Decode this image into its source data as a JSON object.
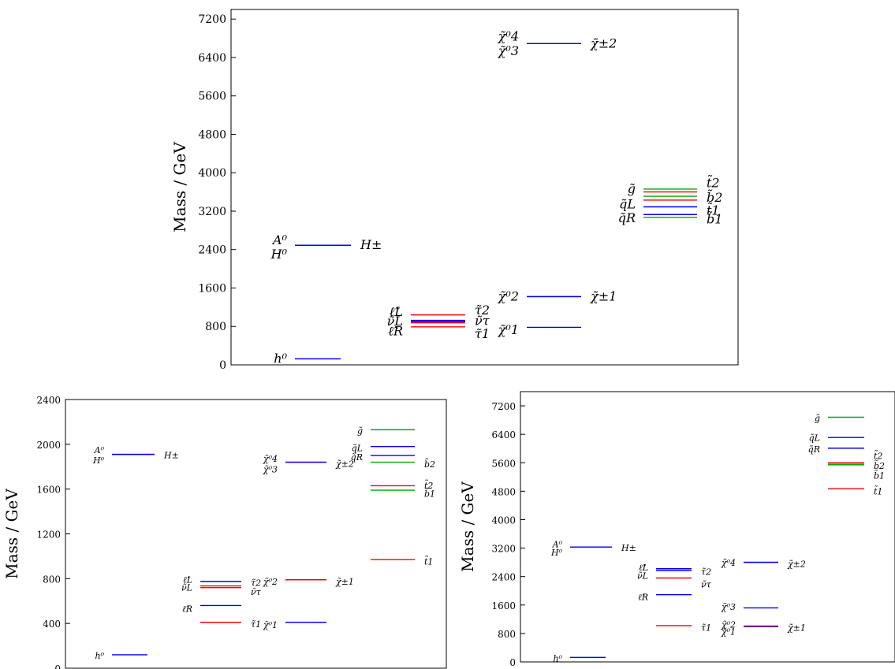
{
  "chart_data": [
    {
      "type": "level-diagram",
      "ylabel": "Mass / GeV",
      "ylim": [
        0,
        7400
      ],
      "yticks": [
        0,
        800,
        1600,
        2400,
        3200,
        4000,
        4800,
        5600,
        6400,
        7200
      ],
      "grid": false,
      "columns": [
        {
          "lines": [
            {
              "value": 125,
              "color": "#0000ff"
            }
          ],
          "left_labels": [
            {
              "text": "h⁰",
              "value": 125
            }
          ],
          "right_labels": []
        },
        {
          "lines": [
            {
              "value": 2490,
              "color": "#ff0000"
            },
            {
              "value": 2490,
              "color": "#0000ff"
            }
          ],
          "left_labels": [
            {
              "text": "A⁰",
              "value": 2590
            },
            {
              "text": "H⁰",
              "value": 2300
            }
          ],
          "right_labels": [
            {
              "text": "H±",
              "value": 2490
            }
          ]
        },
        {
          "lines": [
            {
              "value": 1040,
              "color": "#ff0000"
            },
            {
              "value": 925,
              "color": "#0000ff"
            },
            {
              "value": 900,
              "color": "#0000ff"
            },
            {
              "value": 875,
              "color": "#ff0000"
            },
            {
              "value": 790,
              "color": "#ff0000"
            }
          ],
          "left_labels": [
            {
              "text": "ℓ̃L",
              "value": 1100
            },
            {
              "text": "ν̃L",
              "value": 900
            },
            {
              "text": "ℓ̃R",
              "value": 700
            }
          ],
          "right_labels": [
            {
              "text": "τ̃2",
              "value": 1130
            },
            {
              "text": "ν̃τ",
              "value": 910
            },
            {
              "text": "τ̃1",
              "value": 640
            }
          ]
        },
        {
          "lines": [
            {
              "value": 780,
              "color": "#0000ff"
            },
            {
              "value": 1420,
              "color": "#ff0000"
            },
            {
              "value": 1420,
              "color": "#0000ff"
            },
            {
              "value": 6690,
              "color": "#ff0000"
            },
            {
              "value": 6690,
              "color": "#0000ff"
            }
          ],
          "left_labels": [
            {
              "text": "χ̃⁰1",
              "value": 720
            },
            {
              "text": "χ̃⁰2",
              "value": 1420
            },
            {
              "text": "χ̃⁰4",
              "value": 6830
            },
            {
              "text": "χ̃⁰3",
              "value": 6530
            }
          ],
          "right_labels": [
            {
              "text": "χ̃±1",
              "value": 1420
            },
            {
              "text": "χ̃±2",
              "value": 6690
            }
          ]
        },
        {
          "lines": [
            {
              "value": 3660,
              "color": "#00aa00"
            },
            {
              "value": 3600,
              "color": "#ff0000"
            },
            {
              "value": 3510,
              "color": "#00aa00"
            },
            {
              "value": 3430,
              "color": "#ff0000"
            },
            {
              "value": 3290,
              "color": "#0000ff"
            },
            {
              "value": 3130,
              "color": "#0000ff"
            },
            {
              "value": 3070,
              "color": "#00aa00"
            }
          ],
          "left_labels": [
            {
              "text": "g̃",
              "value": 3660
            },
            {
              "text": "q̃L",
              "value": 3340
            },
            {
              "text": "q̃R",
              "value": 3050
            }
          ],
          "right_labels": [
            {
              "text": "t̃2",
              "value": 3780
            },
            {
              "text": "b̃2",
              "value": 3480
            },
            {
              "text": "t̃1",
              "value": 3210
            },
            {
              "text": "b̃1",
              "value": 3030
            }
          ]
        }
      ]
    },
    {
      "type": "level-diagram",
      "ylabel": "Mass / GeV",
      "ylim": [
        0,
        2400
      ],
      "yticks": [
        0,
        400,
        800,
        1200,
        1600,
        2000,
        2400
      ],
      "grid": false,
      "columns": [
        {
          "lines": [
            {
              "value": 120,
              "color": "#0000ff"
            }
          ],
          "left_labels": [
            {
              "text": "h⁰",
              "value": 120
            }
          ],
          "right_labels": []
        },
        {
          "lines": [
            {
              "value": 1910,
              "color": "#ff0000"
            },
            {
              "value": 1910,
              "color": "#0000ff"
            }
          ],
          "left_labels": [
            {
              "text": "A⁰",
              "value": 1955
            },
            {
              "text": "H⁰",
              "value": 1865
            }
          ],
          "right_labels": [
            {
              "text": "H±",
              "value": 1910
            }
          ]
        },
        {
          "lines": [
            {
              "value": 775,
              "color": "#0000ff"
            },
            {
              "value": 735,
              "color": "#ff0000"
            },
            {
              "value": 720,
              "color": "#ff0000"
            },
            {
              "value": 560,
              "color": "#0000ff"
            },
            {
              "value": 410,
              "color": "#ff0000"
            }
          ],
          "left_labels": [
            {
              "text": "ℓ̃L",
              "value": 800
            },
            {
              "text": "ν̃L",
              "value": 730
            },
            {
              "text": "ℓ̃R",
              "value": 540
            }
          ],
          "right_labels": [
            {
              "text": "τ̃2",
              "value": 770
            },
            {
              "text": "ν̃τ",
              "value": 690
            },
            {
              "text": "τ̃1",
              "value": 400
            }
          ]
        },
        {
          "lines": [
            {
              "value": 410,
              "color": "#0000ff"
            },
            {
              "value": 790,
              "color": "#ff0000"
            },
            {
              "value": 1840,
              "color": "#ff0000"
            },
            {
              "value": 1840,
              "color": "#0000ff"
            }
          ],
          "left_labels": [
            {
              "text": "χ̃⁰1",
              "value": 395
            },
            {
              "text": "χ̃⁰2",
              "value": 780
            },
            {
              "text": "χ̃⁰4",
              "value": 1880
            },
            {
              "text": "χ̃⁰3",
              "value": 1785
            }
          ],
          "right_labels": [
            {
              "text": "χ̃±1",
              "value": 780
            },
            {
              "text": "χ̃±2",
              "value": 1835
            }
          ]
        },
        {
          "lines": [
            {
              "value": 2130,
              "color": "#00aa00"
            },
            {
              "value": 1980,
              "color": "#0000ff"
            },
            {
              "value": 1900,
              "color": "#0000ff"
            },
            {
              "value": 1840,
              "color": "#00aa00"
            },
            {
              "value": 1630,
              "color": "#ff0000"
            },
            {
              "value": 1590,
              "color": "#00aa00"
            },
            {
              "value": 970,
              "color": "#ff0000"
            }
          ],
          "left_labels": [
            {
              "text": "g̃",
              "value": 2130
            },
            {
              "text": "q̃L",
              "value": 1975
            },
            {
              "text": "q̃R",
              "value": 1895
            }
          ],
          "right_labels": [
            {
              "text": "b̃2",
              "value": 1830
            },
            {
              "text": "t̃2",
              "value": 1640
            },
            {
              "text": "b̃1",
              "value": 1565
            },
            {
              "text": "t̃1",
              "value": 960
            }
          ]
        }
      ]
    },
    {
      "type": "level-diagram",
      "ylabel": "Mass / GeV",
      "ylim": [
        0,
        7600
      ],
      "yticks": [
        0,
        800,
        1600,
        2400,
        3200,
        4000,
        4800,
        5600,
        6400,
        7200
      ],
      "grid": false,
      "columns": [
        {
          "lines": [
            {
              "value": 125,
              "color": "#0000ff"
            }
          ],
          "left_labels": [
            {
              "text": "h⁰",
              "value": 125
            }
          ],
          "right_labels": []
        },
        {
          "lines": [
            {
              "value": 3230,
              "color": "#ff0000"
            },
            {
              "value": 3230,
              "color": "#0000ff"
            }
          ],
          "left_labels": [
            {
              "text": "A⁰",
              "value": 3340
            },
            {
              "text": "H⁰",
              "value": 3100
            }
          ],
          "right_labels": [
            {
              "text": "H±",
              "value": 3230
            }
          ]
        },
        {
          "lines": [
            {
              "value": 2620,
              "color": "#0000ff"
            },
            {
              "value": 2570,
              "color": "#0000ff"
            },
            {
              "value": 2360,
              "color": "#ff0000"
            },
            {
              "value": 1890,
              "color": "#0000ff"
            },
            {
              "value": 1020,
              "color": "#ff0000"
            }
          ],
          "left_labels": [
            {
              "text": "ℓ̃L",
              "value": 2680
            },
            {
              "text": "ν̃L",
              "value": 2450
            },
            {
              "text": "ℓ̃R",
              "value": 1850
            }
          ],
          "right_labels": [
            {
              "text": "τ̃2",
              "value": 2560
            },
            {
              "text": "ν̃τ",
              "value": 2210
            },
            {
              "text": "τ̃1",
              "value": 990
            }
          ]
        },
        {
          "lines": [
            {
              "value": 990,
              "color": "#0000ff"
            },
            {
              "value": 1010,
              "color": "#ff0000"
            },
            {
              "value": 1520,
              "color": "#0000ff"
            },
            {
              "value": 2800,
              "color": "#ff0000"
            },
            {
              "value": 2800,
              "color": "#0000ff"
            }
          ],
          "left_labels": [
            {
              "text": "χ̃⁰1",
              "value": 880
            },
            {
              "text": "χ̃⁰2",
              "value": 1080
            },
            {
              "text": "χ̃⁰3",
              "value": 1570
            },
            {
              "text": "χ̃⁰4",
              "value": 2810
            }
          ],
          "right_labels": [
            {
              "text": "χ̃±1",
              "value": 990
            },
            {
              "text": "χ̃±2",
              "value": 2780
            }
          ]
        },
        {
          "lines": [
            {
              "value": 6880,
              "color": "#00aa00"
            },
            {
              "value": 6310,
              "color": "#0000ff"
            },
            {
              "value": 6010,
              "color": "#0000ff"
            },
            {
              "value": 5600,
              "color": "#ff0000"
            },
            {
              "value": 5560,
              "color": "#00aa00"
            },
            {
              "value": 5540,
              "color": "#00aa00"
            },
            {
              "value": 4870,
              "color": "#ff0000"
            }
          ],
          "left_labels": [
            {
              "text": "g̃",
              "value": 6880
            },
            {
              "text": "q̃L",
              "value": 6330
            },
            {
              "text": "q̃R",
              "value": 6000
            }
          ],
          "right_labels": [
            {
              "text": "t̃2",
              "value": 5820
            },
            {
              "text": "b̃2",
              "value": 5540
            },
            {
              "text": "b̃1",
              "value": 5260
            },
            {
              "text": "t̃1",
              "value": 4820
            }
          ]
        }
      ]
    }
  ]
}
